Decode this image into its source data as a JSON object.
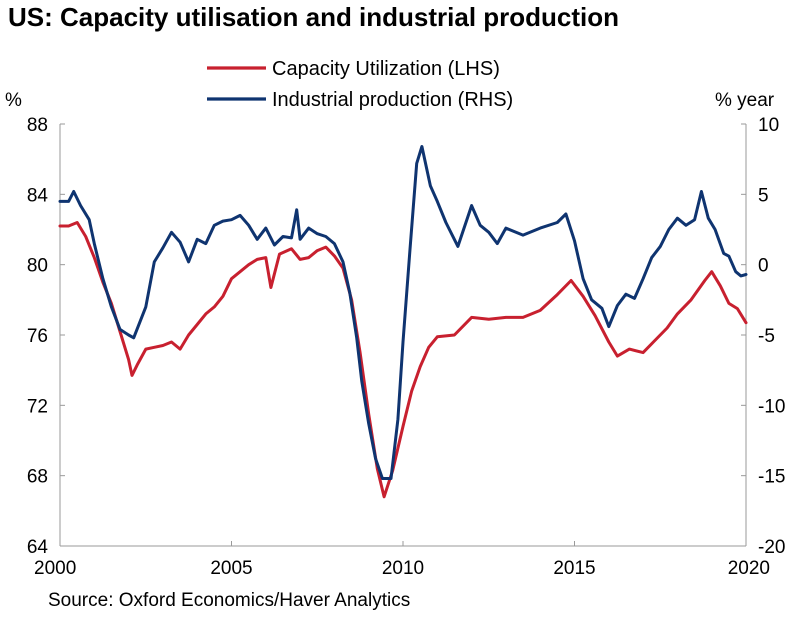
{
  "title": "US: Capacity utilisation and industrial production",
  "source": "Source: Oxford Economics/Haver Analytics",
  "colors": {
    "capacity": "#c8202f",
    "production": "#0f3470",
    "axis": "#9a9a9a"
  },
  "chart_data": {
    "type": "line",
    "title": "US: Capacity utilisation and industrial production",
    "left_axis": {
      "unit": "%",
      "ylim": [
        64,
        88
      ],
      "ticks": [
        64,
        68,
        72,
        76,
        80,
        84,
        88
      ]
    },
    "right_axis": {
      "unit": "% year",
      "ylim": [
        -20,
        10
      ],
      "ticks": [
        -20,
        -15,
        -10,
        -5,
        0,
        5,
        10
      ]
    },
    "x_axis": {
      "xlim": [
        2000,
        2020
      ],
      "ticks": [
        2000,
        2005,
        2010,
        2015,
        2020
      ]
    },
    "legend": "top-center",
    "grid": false,
    "series": [
      {
        "name": "Capacity Utilization (LHS)",
        "axis": "left",
        "color": "#c8202f",
        "points": [
          [
            2000.0,
            82.2
          ],
          [
            2000.25,
            82.2
          ],
          [
            2000.5,
            82.4
          ],
          [
            2000.75,
            81.6
          ],
          [
            2001.0,
            80.4
          ],
          [
            2001.25,
            79.0
          ],
          [
            2001.5,
            77.8
          ],
          [
            2001.75,
            76.2
          ],
          [
            2002.0,
            74.6
          ],
          [
            2002.1,
            73.7
          ],
          [
            2002.25,
            74.3
          ],
          [
            2002.5,
            75.2
          ],
          [
            2002.75,
            75.3
          ],
          [
            2003.0,
            75.4
          ],
          [
            2003.25,
            75.6
          ],
          [
            2003.5,
            75.2
          ],
          [
            2003.75,
            76.0
          ],
          [
            2004.0,
            76.6
          ],
          [
            2004.25,
            77.2
          ],
          [
            2004.5,
            77.6
          ],
          [
            2004.75,
            78.2
          ],
          [
            2005.0,
            79.2
          ],
          [
            2005.25,
            79.6
          ],
          [
            2005.5,
            80.0
          ],
          [
            2005.75,
            80.3
          ],
          [
            2006.0,
            80.4
          ],
          [
            2006.15,
            78.7
          ],
          [
            2006.4,
            80.6
          ],
          [
            2006.75,
            80.9
          ],
          [
            2007.0,
            80.3
          ],
          [
            2007.25,
            80.4
          ],
          [
            2007.5,
            80.8
          ],
          [
            2007.75,
            81.0
          ],
          [
            2008.0,
            80.5
          ],
          [
            2008.25,
            79.8
          ],
          [
            2008.5,
            78.0
          ],
          [
            2008.75,
            75.0
          ],
          [
            2009.0,
            71.5
          ],
          [
            2009.25,
            68.4
          ],
          [
            2009.45,
            66.8
          ],
          [
            2009.7,
            68.3
          ],
          [
            2010.0,
            70.8
          ],
          [
            2010.25,
            72.8
          ],
          [
            2010.5,
            74.2
          ],
          [
            2010.75,
            75.3
          ],
          [
            2011.0,
            75.9
          ],
          [
            2011.5,
            76.0
          ],
          [
            2012.0,
            77.0
          ],
          [
            2012.5,
            76.9
          ],
          [
            2013.0,
            77.0
          ],
          [
            2013.5,
            77.0
          ],
          [
            2014.0,
            77.4
          ],
          [
            2014.5,
            78.3
          ],
          [
            2014.9,
            79.1
          ],
          [
            2015.25,
            78.2
          ],
          [
            2015.6,
            77.1
          ],
          [
            2016.0,
            75.6
          ],
          [
            2016.25,
            74.8
          ],
          [
            2016.6,
            75.2
          ],
          [
            2017.0,
            75.0
          ],
          [
            2017.3,
            75.6
          ],
          [
            2017.7,
            76.4
          ],
          [
            2018.0,
            77.2
          ],
          [
            2018.4,
            78.0
          ],
          [
            2018.8,
            79.1
          ],
          [
            2019.0,
            79.6
          ],
          [
            2019.25,
            78.8
          ],
          [
            2019.5,
            77.8
          ],
          [
            2019.75,
            77.5
          ],
          [
            2020.0,
            76.7
          ]
        ]
      },
      {
        "name": "Industrial production (RHS)",
        "axis": "right",
        "color": "#0f3470",
        "points": [
          [
            2000.0,
            4.5
          ],
          [
            2000.25,
            4.5
          ],
          [
            2000.4,
            5.2
          ],
          [
            2000.6,
            4.2
          ],
          [
            2000.85,
            3.2
          ],
          [
            2001.0,
            1.5
          ],
          [
            2001.25,
            -1.0
          ],
          [
            2001.5,
            -3.0
          ],
          [
            2001.75,
            -4.6
          ],
          [
            2002.0,
            -5.0
          ],
          [
            2002.15,
            -5.2
          ],
          [
            2002.5,
            -3.0
          ],
          [
            2002.75,
            0.2
          ],
          [
            2003.0,
            1.2
          ],
          [
            2003.25,
            2.3
          ],
          [
            2003.5,
            1.6
          ],
          [
            2003.75,
            0.2
          ],
          [
            2004.0,
            1.8
          ],
          [
            2004.25,
            1.5
          ],
          [
            2004.5,
            2.8
          ],
          [
            2004.75,
            3.1
          ],
          [
            2005.0,
            3.2
          ],
          [
            2005.25,
            3.5
          ],
          [
            2005.5,
            2.8
          ],
          [
            2005.75,
            1.8
          ],
          [
            2006.0,
            2.6
          ],
          [
            2006.25,
            1.4
          ],
          [
            2006.5,
            2.0
          ],
          [
            2006.75,
            1.9
          ],
          [
            2006.9,
            3.9
          ],
          [
            2007.0,
            1.8
          ],
          [
            2007.25,
            2.6
          ],
          [
            2007.5,
            2.2
          ],
          [
            2007.75,
            2.0
          ],
          [
            2008.0,
            1.5
          ],
          [
            2008.25,
            0.2
          ],
          [
            2008.45,
            -2.0
          ],
          [
            2008.65,
            -5.2
          ],
          [
            2008.8,
            -8.3
          ],
          [
            2009.0,
            -11.3
          ],
          [
            2009.2,
            -13.8
          ],
          [
            2009.4,
            -15.2
          ],
          [
            2009.65,
            -15.2
          ],
          [
            2009.85,
            -11.0
          ],
          [
            2010.0,
            -5.5
          ],
          [
            2010.2,
            1.0
          ],
          [
            2010.4,
            7.2
          ],
          [
            2010.55,
            8.4
          ],
          [
            2010.8,
            5.6
          ],
          [
            2011.0,
            4.5
          ],
          [
            2011.25,
            3.0
          ],
          [
            2011.6,
            1.3
          ],
          [
            2012.0,
            4.2
          ],
          [
            2012.25,
            2.8
          ],
          [
            2012.5,
            2.3
          ],
          [
            2012.75,
            1.5
          ],
          [
            2013.0,
            2.6
          ],
          [
            2013.5,
            2.1
          ],
          [
            2014.0,
            2.6
          ],
          [
            2014.5,
            3.0
          ],
          [
            2014.75,
            3.6
          ],
          [
            2015.0,
            1.7
          ],
          [
            2015.25,
            -1.0
          ],
          [
            2015.5,
            -2.5
          ],
          [
            2015.8,
            -3.1
          ],
          [
            2016.0,
            -4.4
          ],
          [
            2016.25,
            -2.9
          ],
          [
            2016.5,
            -2.1
          ],
          [
            2016.75,
            -2.4
          ],
          [
            2017.0,
            -1.0
          ],
          [
            2017.25,
            0.5
          ],
          [
            2017.5,
            1.3
          ],
          [
            2017.75,
            2.5
          ],
          [
            2018.0,
            3.3
          ],
          [
            2018.25,
            2.8
          ],
          [
            2018.5,
            3.2
          ],
          [
            2018.7,
            5.2
          ],
          [
            2018.9,
            3.3
          ],
          [
            2019.1,
            2.5
          ],
          [
            2019.35,
            0.8
          ],
          [
            2019.5,
            0.6
          ],
          [
            2019.7,
            -0.5
          ],
          [
            2019.85,
            -0.8
          ],
          [
            2020.0,
            -0.7
          ]
        ]
      }
    ]
  }
}
